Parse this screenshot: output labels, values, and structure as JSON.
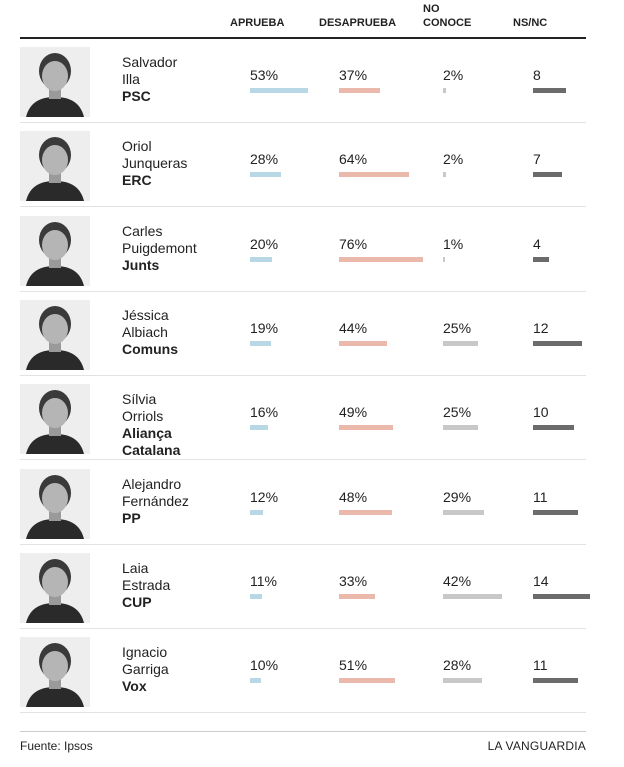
{
  "columns": {
    "aprueba": "APRUEBA",
    "desaprueba": "DESAPRUEBA",
    "no_conoce_1": "NO",
    "no_conoce_2": "CONOCE",
    "nsnc": "NS/NC"
  },
  "colors": {
    "aprueba": "#b9d8e6",
    "desaprueba": "#ebb9ab",
    "no_conoce": "#c8c8c8",
    "nsnc": "#6b6b6b"
  },
  "chart_data": {
    "type": "table",
    "columns": [
      "APRUEBA",
      "DESAPRUEBA",
      "NO CONOCE",
      "NS/NC"
    ],
    "rows": [
      {
        "first": "Salvador",
        "last": "Illa",
        "party": "PSC",
        "party2": "",
        "aprueba": "53%",
        "desaprueba": "37%",
        "no_conoce": "2%",
        "nsnc": "8"
      },
      {
        "first": "Oriol",
        "last": "Junqueras",
        "party": "ERC",
        "party2": "",
        "aprueba": "28%",
        "desaprueba": "64%",
        "no_conoce": "2%",
        "nsnc": "7"
      },
      {
        "first": "Carles",
        "last": "Puigdemont",
        "party": "Junts",
        "party2": "",
        "aprueba": "20%",
        "desaprueba": "76%",
        "no_conoce": "1%",
        "nsnc": "4"
      },
      {
        "first": "Jéssica",
        "last": "Albiach",
        "party": "Comuns",
        "party2": "",
        "aprueba": "19%",
        "desaprueba": "44%",
        "no_conoce": "25%",
        "nsnc": "12"
      },
      {
        "first": "Sílvia",
        "last": "Orriols",
        "party": "Aliança",
        "party2": "Catalana",
        "aprueba": "16%",
        "desaprueba": "49%",
        "no_conoce": "25%",
        "nsnc": "10"
      },
      {
        "first": "Alejandro",
        "last": "Fernández",
        "party": "PP",
        "party2": "",
        "aprueba": "12%",
        "desaprueba": "48%",
        "no_conoce": "29%",
        "nsnc": "11"
      },
      {
        "first": "Laia",
        "last": "Estrada",
        "party": "CUP",
        "party2": "",
        "aprueba": "11%",
        "desaprueba": "33%",
        "no_conoce": "42%",
        "nsnc": "14"
      },
      {
        "first": "Ignacio",
        "last": "Garriga",
        "party": "Vox",
        "party2": "",
        "aprueba": "10%",
        "desaprueba": "51%",
        "no_conoce": "28%",
        "nsnc": "11"
      }
    ]
  },
  "footer": {
    "source": "Fuente: Ipsos",
    "brand": "LA VANGUARDIA"
  }
}
